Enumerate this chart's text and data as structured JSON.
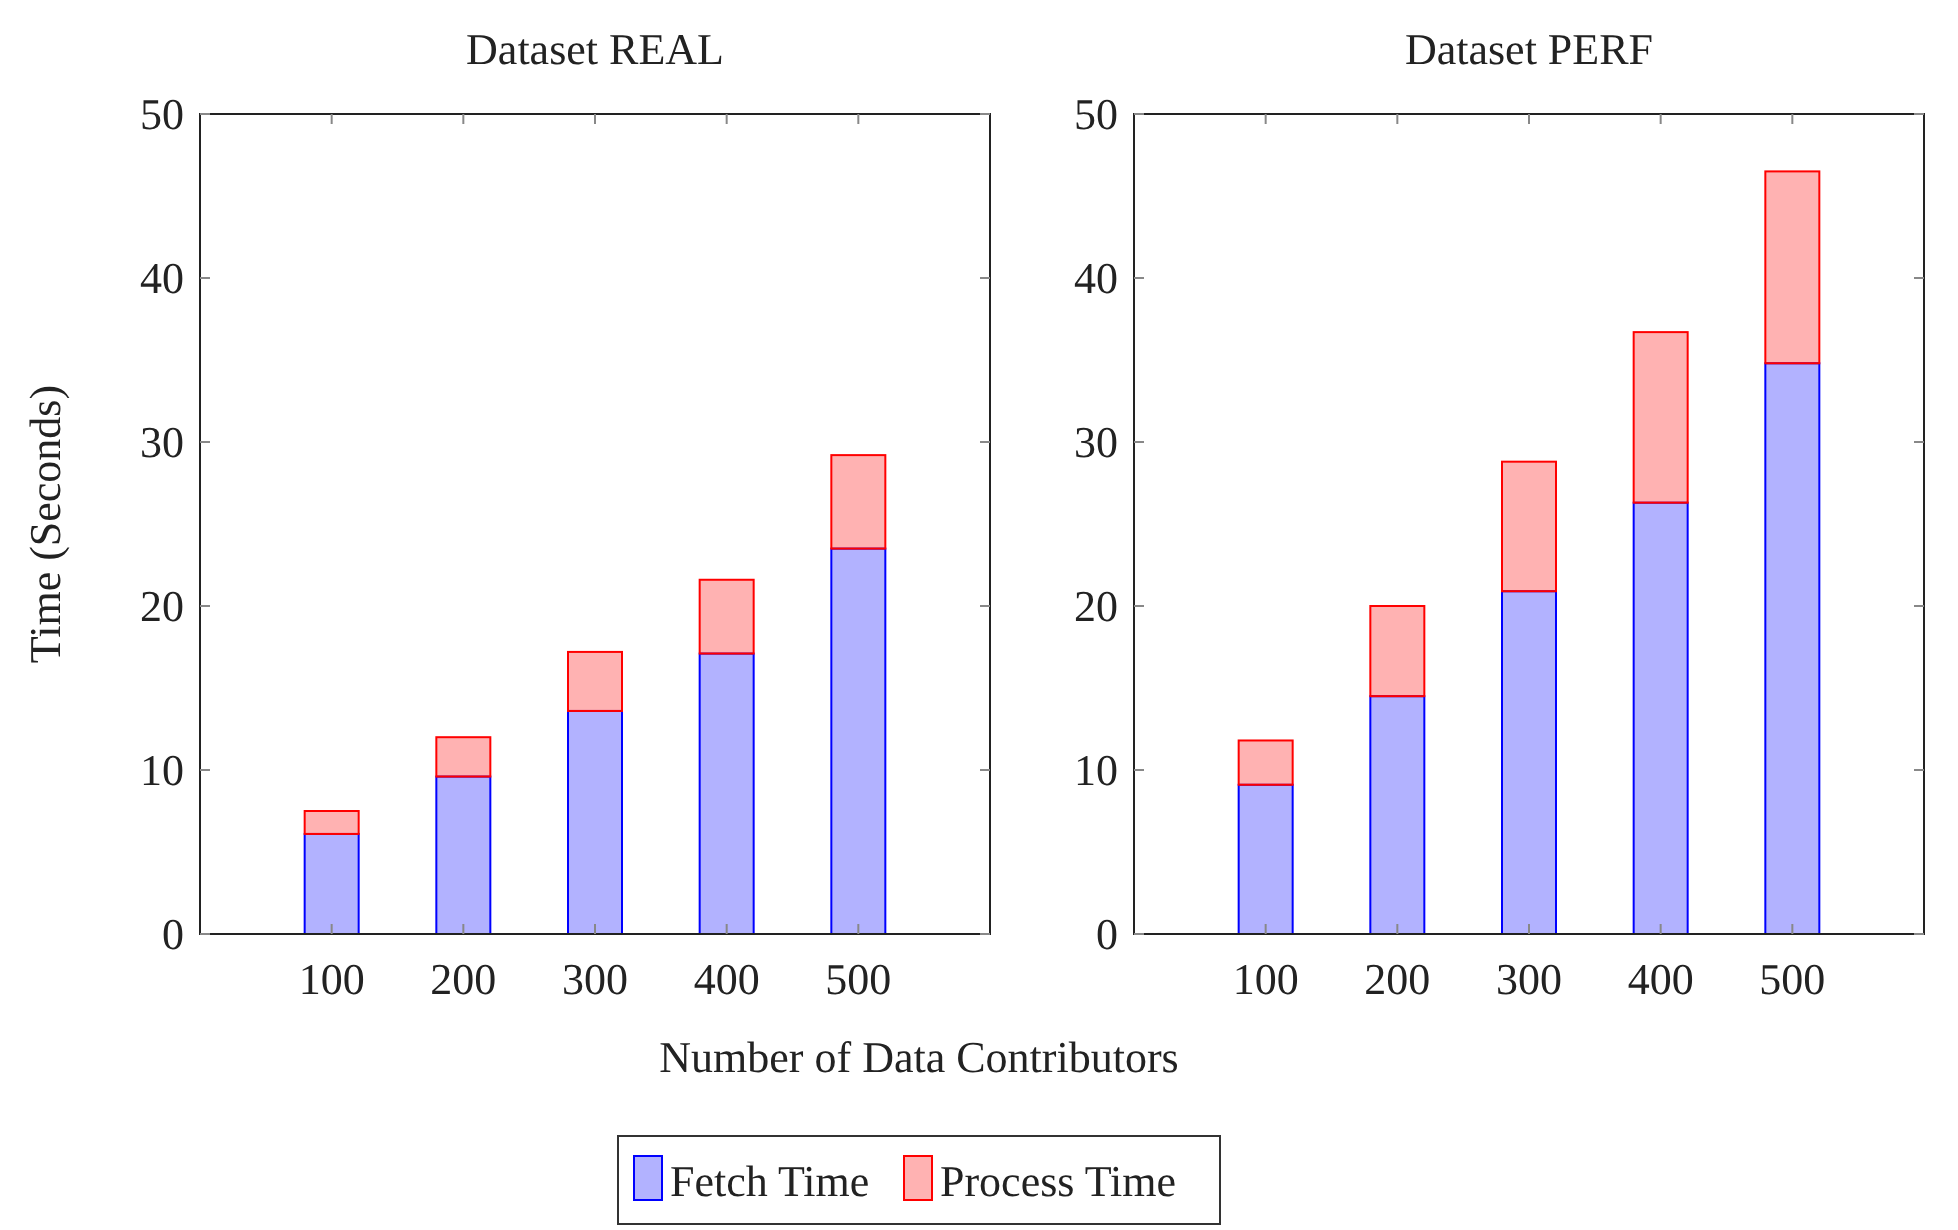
{
  "chart_data": [
    {
      "type": "bar",
      "title": "Dataset REAL",
      "xlabel": "Number of Data Contributors",
      "ylabel": "Time (Seconds)",
      "categories": [
        "100",
        "200",
        "300",
        "400",
        "500"
      ],
      "stacked": true,
      "ylim": [
        0,
        50
      ],
      "yticks": [
        0,
        10,
        20,
        30,
        40,
        50
      ],
      "legend": "bottom",
      "series": [
        {
          "name": "Fetch Time",
          "color": "#0000ff",
          "values": [
            6.1,
            9.6,
            13.6,
            17.1,
            23.5
          ]
        },
        {
          "name": "Process Time",
          "color": "#ff0000",
          "values": [
            1.4,
            2.4,
            3.6,
            4.5,
            5.7
          ]
        }
      ]
    },
    {
      "type": "bar",
      "title": "Dataset PERF",
      "categories": [
        "100",
        "200",
        "300",
        "400",
        "500"
      ],
      "stacked": true,
      "ylim": [
        0,
        50
      ],
      "yticks": [
        0,
        10,
        20,
        30,
        40,
        50
      ],
      "series": [
        {
          "color": "#0000ff",
          "values": [
            9.1,
            14.5,
            20.9,
            26.3,
            34.8
          ]
        },
        {
          "color": "#ff0000",
          "values": [
            2.7,
            5.5,
            7.9,
            10.4,
            11.7
          ]
        }
      ]
    }
  ]
}
